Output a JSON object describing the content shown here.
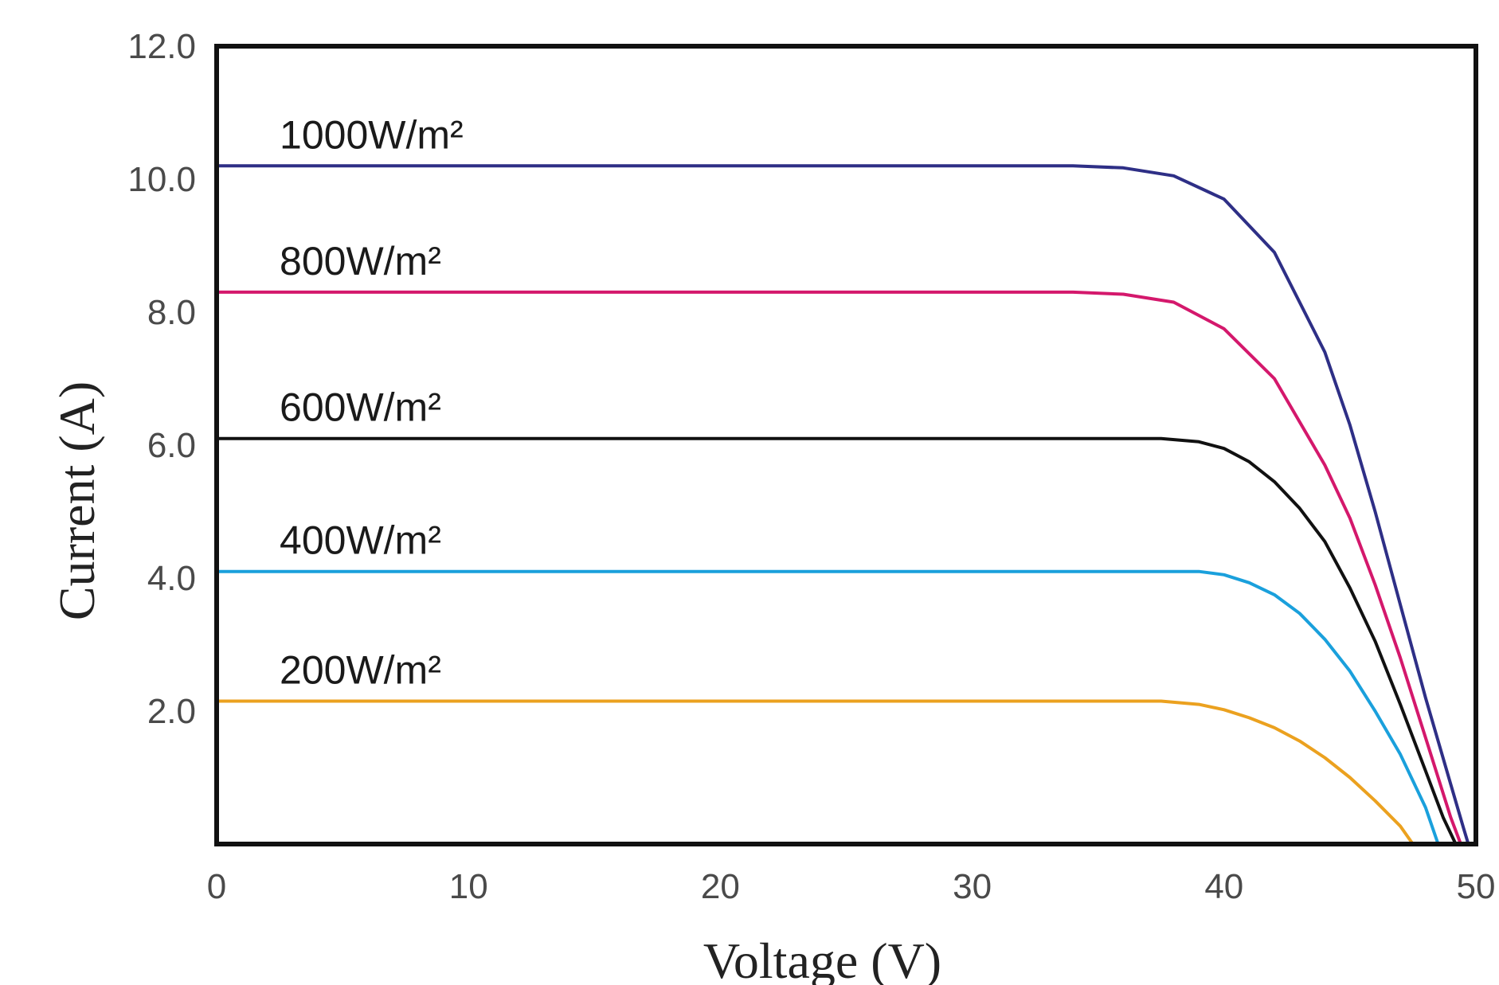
{
  "chart_data": {
    "type": "line",
    "xlabel": "Voltage (V)",
    "ylabel": "Current (A)",
    "xlim": [
      0,
      50
    ],
    "ylim": [
      0,
      12
    ],
    "x_ticks": [
      "0",
      "10",
      "20",
      "30",
      "40",
      "50"
    ],
    "y_ticks": [
      "2.0",
      "4.0",
      "6.0",
      "8.0",
      "10.0",
      "12.0"
    ],
    "grid": false,
    "series": [
      {
        "name": "1000W/m²",
        "color": "#2e2f86",
        "x": [
          0,
          5,
          10,
          15,
          20,
          25,
          30,
          34,
          36,
          38,
          40,
          42,
          44,
          45,
          46,
          47,
          48,
          49,
          49.5,
          49.7
        ],
        "y": [
          10.2,
          10.2,
          10.2,
          10.2,
          10.2,
          10.2,
          10.2,
          10.2,
          10.17,
          10.05,
          9.7,
          8.9,
          7.4,
          6.3,
          5.0,
          3.6,
          2.2,
          0.9,
          0.25,
          0
        ]
      },
      {
        "name": "800W/m²",
        "color": "#d4186c",
        "x": [
          0,
          5,
          10,
          15,
          20,
          25,
          30,
          34,
          36,
          38,
          40,
          42,
          44,
          45,
          46,
          47,
          48,
          49,
          49.4
        ],
        "y": [
          8.3,
          8.3,
          8.3,
          8.3,
          8.3,
          8.3,
          8.3,
          8.3,
          8.27,
          8.15,
          7.75,
          7.0,
          5.7,
          4.9,
          3.9,
          2.8,
          1.6,
          0.4,
          0
        ]
      },
      {
        "name": "600W/m²",
        "color": "#111111",
        "x": [
          0,
          5,
          10,
          15,
          20,
          25,
          30,
          35,
          37.5,
          39,
          40,
          41,
          42,
          43,
          44,
          45,
          46,
          47,
          48,
          48.7,
          49.2
        ],
        "y": [
          6.1,
          6.1,
          6.1,
          6.1,
          6.1,
          6.1,
          6.1,
          6.1,
          6.1,
          6.05,
          5.95,
          5.75,
          5.45,
          5.05,
          4.55,
          3.85,
          3.05,
          2.1,
          1.1,
          0.4,
          0
        ]
      },
      {
        "name": "400W/m²",
        "color": "#1aa0dc",
        "x": [
          0,
          5,
          10,
          15,
          20,
          25,
          30,
          35,
          39,
          40,
          41,
          42,
          43,
          44,
          45,
          46,
          47,
          48,
          48.5
        ],
        "y": [
          4.1,
          4.1,
          4.1,
          4.1,
          4.1,
          4.1,
          4.1,
          4.1,
          4.1,
          4.05,
          3.93,
          3.75,
          3.47,
          3.08,
          2.6,
          2.0,
          1.35,
          0.55,
          0
        ]
      },
      {
        "name": "200W/m²",
        "color": "#eba11f",
        "x": [
          0,
          5,
          10,
          15,
          20,
          25,
          30,
          35,
          37.5,
          39,
          40,
          41,
          42,
          43,
          44,
          45,
          46,
          47,
          47.5
        ],
        "y": [
          2.15,
          2.15,
          2.15,
          2.15,
          2.15,
          2.15,
          2.15,
          2.15,
          2.15,
          2.1,
          2.02,
          1.9,
          1.75,
          1.55,
          1.3,
          1.0,
          0.65,
          0.27,
          0
        ]
      }
    ]
  }
}
